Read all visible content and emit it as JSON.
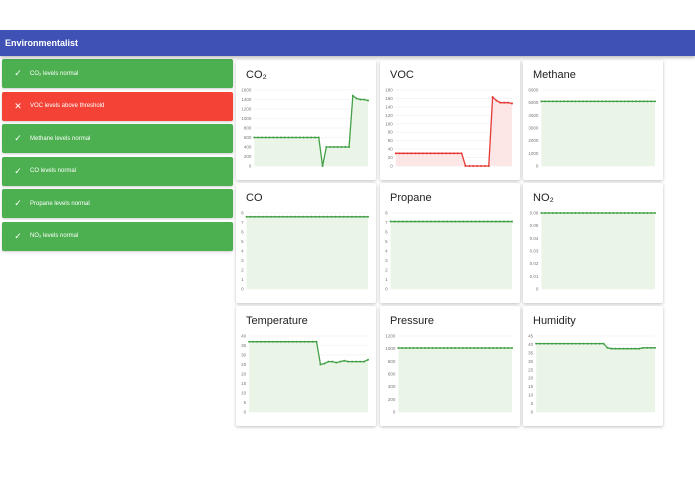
{
  "app": {
    "title": "Environmentalist"
  },
  "colors": {
    "appbar": "#3f51b5",
    "ok": "#4caf50",
    "alert": "#f44336",
    "line_ok": "#43a047",
    "line_alert": "#e53935",
    "fill_ok": "#eaf5e8",
    "fill_alert": "#fde6e6"
  },
  "alerts": [
    {
      "status": "ok",
      "icon": "check-icon",
      "glyph": "✓",
      "label": "CO₂ levels normal"
    },
    {
      "status": "bad",
      "icon": "close-icon",
      "glyph": "✕",
      "label": "VOC levels above threshold"
    },
    {
      "status": "ok",
      "icon": "check-icon",
      "glyph": "✓",
      "label": "Methane levels normal"
    },
    {
      "status": "ok",
      "icon": "check-icon",
      "glyph": "✓",
      "label": "CO levels normal"
    },
    {
      "status": "ok",
      "icon": "check-icon",
      "glyph": "✓",
      "label": "Propane levels normal"
    },
    {
      "status": "ok",
      "icon": "check-icon",
      "glyph": "✓",
      "label": "NO₂ levels normal"
    }
  ],
  "chart_data": [
    {
      "type": "area",
      "title": "CO₂",
      "alert": false,
      "yticks": [
        "0",
        "200",
        "400",
        "600",
        "800",
        "1000",
        "1200",
        "1400",
        "1600"
      ],
      "ylim": [
        0,
        1600
      ],
      "values": [
        600,
        600,
        600,
        600,
        600,
        600,
        600,
        600,
        600,
        600,
        600,
        600,
        600,
        600,
        600,
        600,
        600,
        600,
        0,
        400,
        400,
        400,
        400,
        400,
        400,
        400,
        1480,
        1420,
        1400,
        1400,
        1380
      ]
    },
    {
      "type": "area",
      "title": "VOC",
      "alert": true,
      "yticks": [
        "0",
        "20",
        "40",
        "60",
        "80",
        "100",
        "120",
        "140",
        "160",
        "180"
      ],
      "ylim": [
        0,
        180
      ],
      "values": [
        30,
        30,
        30,
        30,
        30,
        30,
        30,
        30,
        30,
        30,
        30,
        30,
        30,
        30,
        30,
        30,
        30,
        30,
        0,
        0,
        0,
        0,
        0,
        0,
        0,
        163,
        155,
        150,
        150,
        150,
        148
      ]
    },
    {
      "type": "area",
      "title": "Methane",
      "alert": false,
      "yticks": [
        "0",
        "1000",
        "2000",
        "3000",
        "4000",
        "5000",
        "6000"
      ],
      "ylim": [
        0,
        6000
      ],
      "values": [
        5100,
        5100,
        5100,
        5100,
        5100,
        5100,
        5100,
        5100,
        5100,
        5100,
        5100,
        5100,
        5100,
        5100,
        5100,
        5100,
        5100,
        5100,
        5100,
        5100,
        5100,
        5100,
        5100,
        5100,
        5100,
        5100,
        5100,
        5100,
        5100,
        5100,
        5100
      ]
    },
    {
      "type": "area",
      "title": "CO",
      "alert": false,
      "yticks": [
        "0",
        "1",
        "2",
        "3",
        "4",
        "5",
        "6",
        "7",
        "8"
      ],
      "ylim": [
        0,
        8
      ],
      "values": [
        7.6,
        7.6,
        7.6,
        7.6,
        7.6,
        7.6,
        7.6,
        7.6,
        7.6,
        7.6,
        7.6,
        7.6,
        7.6,
        7.6,
        7.6,
        7.6,
        7.6,
        7.6,
        7.6,
        7.6,
        7.6,
        7.6,
        7.6,
        7.6,
        7.6,
        7.6,
        7.6,
        7.6,
        7.6,
        7.6,
        7.6
      ]
    },
    {
      "type": "area",
      "title": "Propane",
      "alert": false,
      "yticks": [
        "0",
        "1",
        "2",
        "3",
        "4",
        "5",
        "6",
        "7",
        "8"
      ],
      "ylim": [
        0,
        8
      ],
      "values": [
        7.1,
        7.1,
        7.1,
        7.1,
        7.1,
        7.1,
        7.1,
        7.1,
        7.1,
        7.1,
        7.1,
        7.1,
        7.1,
        7.1,
        7.1,
        7.1,
        7.1,
        7.1,
        7.1,
        7.1,
        7.1,
        7.1,
        7.1,
        7.1,
        7.1,
        7.1,
        7.1,
        7.1,
        7.1,
        7.1,
        7.1
      ]
    },
    {
      "type": "area",
      "title": "NO₂",
      "alert": false,
      "yticks": [
        "0",
        "0.01",
        "0.02",
        "0.03",
        "0.04",
        "0.05",
        "0.06"
      ],
      "ylim": [
        0,
        0.06
      ],
      "values": [
        0.06,
        0.06,
        0.06,
        0.06,
        0.06,
        0.06,
        0.06,
        0.06,
        0.06,
        0.06,
        0.06,
        0.06,
        0.06,
        0.06,
        0.06,
        0.06,
        0.06,
        0.06,
        0.06,
        0.06,
        0.06,
        0.06,
        0.06,
        0.06,
        0.06,
        0.06,
        0.06,
        0.06,
        0.06,
        0.06,
        0.06
      ]
    },
    {
      "type": "area",
      "title": "Temperature",
      "alert": false,
      "yticks": [
        "0",
        "5",
        "10",
        "15",
        "20",
        "25",
        "30",
        "35",
        "40"
      ],
      "ylim": [
        0,
        40
      ],
      "values": [
        37,
        37,
        37,
        37,
        37,
        37,
        37,
        37,
        37,
        37,
        37,
        37,
        37,
        37,
        37,
        37,
        37,
        37,
        25,
        25.5,
        26.5,
        26.5,
        26,
        26.5,
        27,
        26.5,
        26.5,
        26.5,
        26.5,
        26.5,
        27.5
      ]
    },
    {
      "type": "area",
      "title": "Pressure",
      "alert": false,
      "yticks": [
        "0",
        "200",
        "400",
        "600",
        "800",
        "1000",
        "1200"
      ],
      "ylim": [
        0,
        1200
      ],
      "values": [
        1010,
        1010,
        1010,
        1010,
        1010,
        1010,
        1010,
        1010,
        1010,
        1010,
        1010,
        1010,
        1010,
        1010,
        1010,
        1010,
        1010,
        1010,
        1010,
        1010,
        1010,
        1010,
        1010,
        1010,
        1010,
        1010,
        1010,
        1010,
        1010,
        1010,
        1010
      ]
    },
    {
      "type": "area",
      "title": "Humidity",
      "alert": false,
      "yticks": [
        "0",
        "5",
        "10",
        "15",
        "20",
        "25",
        "30",
        "35",
        "40",
        "45"
      ],
      "ylim": [
        0,
        45
      ],
      "values": [
        40.5,
        40.5,
        40.5,
        40.5,
        40.5,
        40.5,
        40.5,
        40.5,
        40.5,
        40.5,
        40.5,
        40.5,
        40.5,
        40.5,
        40.5,
        40.5,
        40.5,
        40.5,
        38,
        37.5,
        37.5,
        37.5,
        37.5,
        37.5,
        37.5,
        37.5,
        37.5,
        38,
        38,
        38,
        38
      ]
    }
  ]
}
